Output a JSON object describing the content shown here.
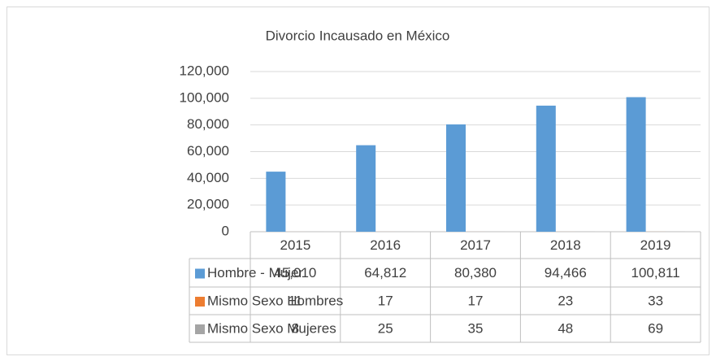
{
  "chart_data": {
    "type": "bar",
    "title": "Divorcio Incausado  en México",
    "categories": [
      "2015",
      "2016",
      "2017",
      "2018",
      "2019"
    ],
    "series": [
      {
        "name": "Hombre - Mujer",
        "color": "#5b9bd5",
        "values": [
          45010,
          64812,
          80380,
          94466,
          100811
        ],
        "value_labels": [
          "45,010",
          "64,812",
          "80,380",
          "94,466",
          "100,811"
        ]
      },
      {
        "name": "Mismo Sexo Hombres",
        "color": "#ed7d31",
        "values": [
          11,
          17,
          17,
          23,
          33
        ]
      },
      {
        "name": "Mismo Sexo Mujeres",
        "color": "#a5a5a5",
        "values": [
          8,
          25,
          35,
          48,
          69
        ]
      }
    ],
    "ylim": [
      0,
      120000
    ],
    "yticks": [
      0,
      {
        "value": 20000,
        "label": "20,000"
      },
      {
        "value": 40000,
        "label": "40,000"
      },
      {
        "value": 60000,
        "label": "60,000"
      },
      {
        "value": 80000,
        "label": "80,000"
      },
      {
        "value": 100000,
        "label": "100,000"
      },
      {
        "value": 120000,
        "label": "120,000"
      }
    ],
    "grid": true
  }
}
